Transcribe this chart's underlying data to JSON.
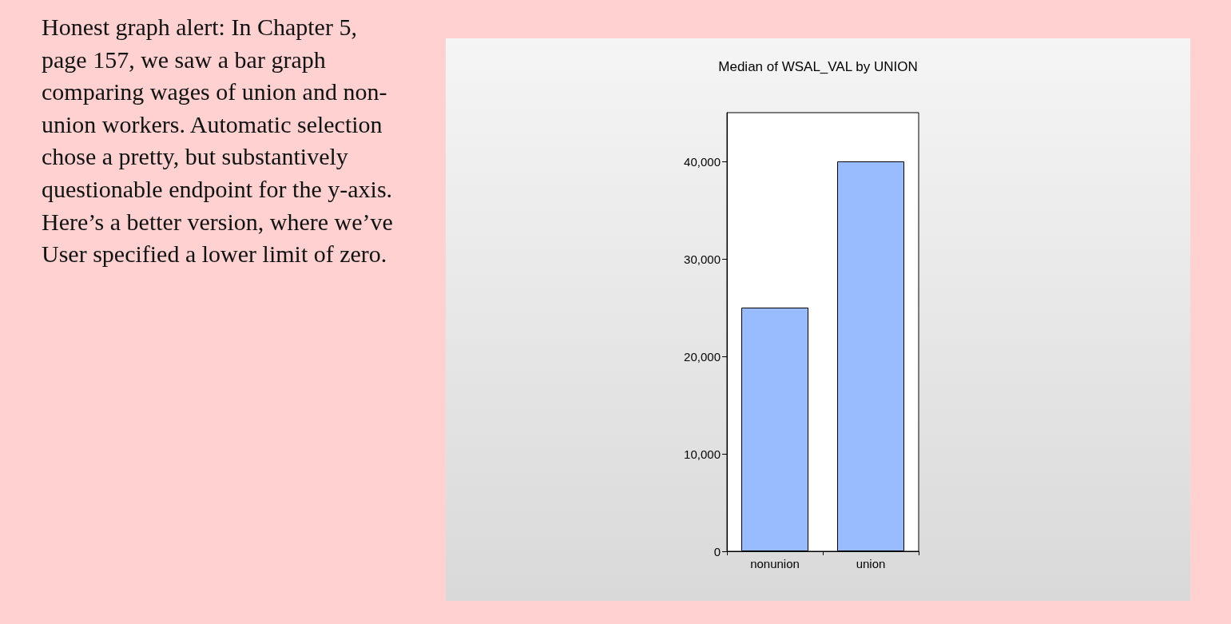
{
  "chart_data": {
    "type": "bar",
    "title": "Median of WSAL_VAL by UNION",
    "categories": [
      "nonunion",
      "union"
    ],
    "values": [
      25000,
      40000
    ],
    "color": "#99bbff",
    "ylim": [
      0,
      45000
    ],
    "yticks": [
      {
        "value": 0,
        "label": "0"
      },
      {
        "value": 10000,
        "label": "10,000"
      },
      {
        "value": 20000,
        "label": "20,000"
      },
      {
        "value": 30000,
        "label": "30,000"
      },
      {
        "value": 40000,
        "label": "40,000"
      }
    ],
    "grid": false,
    "annotations": [
      "Honest graph alert: In Chapter 5, page 157, we saw a bar graph comparing wages of union and non-union workers. Automatic selection chose a pretty, but substantively questionable endpoint for the y-axis. Here’s a better version, where we’ve User specified a lower limit of zero."
    ]
  }
}
